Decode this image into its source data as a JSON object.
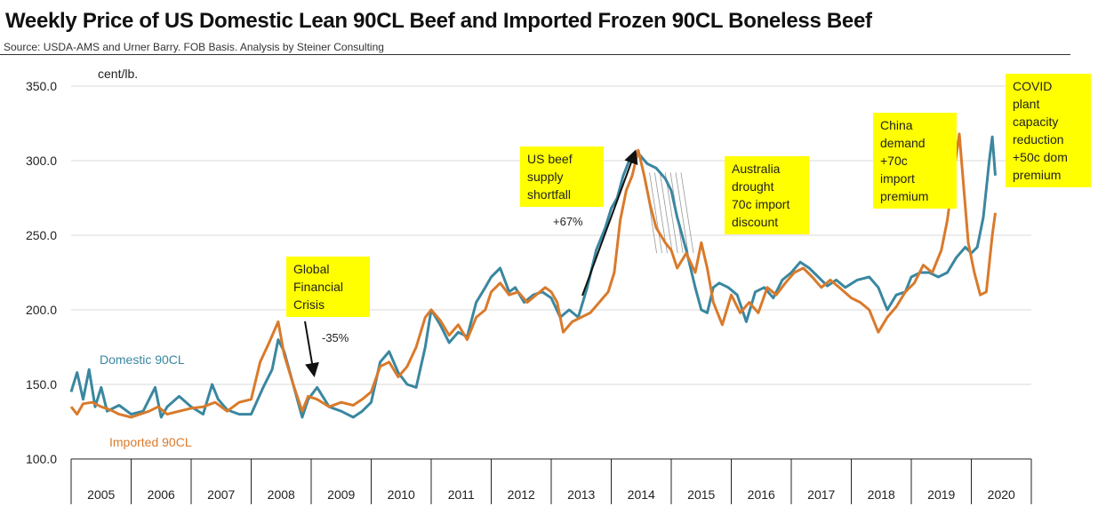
{
  "title": "Weekly Price of US Domestic Lean 90CL Beef and Imported Frozen 90CL Boneless Beef",
  "source": "Source: USDA-AMS and Urner Barry. FOB Basis. Analysis by Steiner Consulting",
  "colors": {
    "domestic": "#3a87a0",
    "imported": "#d97a2b",
    "annotation_bg": "#ffff00",
    "grid": "#d9d9d9"
  },
  "annotations": {
    "gfc": "Global\nFinancial\nCrisis",
    "gfc_change": "-35%",
    "us_shortfall": "US beef\nsupply\nshortfall",
    "us_change": "+67%",
    "australia": "Australia\ndrought\n70c import\ndiscount",
    "china": "China\ndemand\n+70c\nimport\npremium",
    "covid": "COVID\nplant\ncapacity\nreduction\n+50c dom\npremium"
  },
  "chart_data": {
    "type": "line",
    "title": "Weekly Price of US Domestic Lean 90CL Beef and Imported Frozen 90CL Boneless Beef",
    "ylabel": "cent/lb.",
    "ylim": [
      100,
      350
    ],
    "yticks": [
      "100.0",
      "150.0",
      "200.0",
      "250.0",
      "300.0",
      "350.0"
    ],
    "xlim": [
      2005,
      2021
    ],
    "xticks": [
      "2005",
      "2006",
      "2007",
      "2008",
      "2009",
      "2010",
      "2011",
      "2012",
      "2013",
      "2014",
      "2015",
      "2016",
      "2017",
      "2018",
      "2019",
      "2020"
    ],
    "grid": "horizontal",
    "series": [
      {
        "name": "Domestic 90CL",
        "color": "#3a87a0",
        "x": [
          2005.0,
          2005.1,
          2005.2,
          2005.3,
          2005.4,
          2005.5,
          2005.6,
          2005.8,
          2006.0,
          2006.2,
          2006.4,
          2006.5,
          2006.6,
          2006.8,
          2007.0,
          2007.2,
          2007.35,
          2007.45,
          2007.6,
          2007.8,
          2008.0,
          2008.2,
          2008.35,
          2008.45,
          2008.55,
          2008.7,
          2008.85,
          2008.95,
          2009.1,
          2009.3,
          2009.5,
          2009.7,
          2009.85,
          2010.0,
          2010.15,
          2010.3,
          2010.45,
          2010.6,
          2010.75,
          2010.9,
          2011.0,
          2011.15,
          2011.3,
          2011.45,
          2011.6,
          2011.75,
          2011.9,
          2012.0,
          2012.15,
          2012.3,
          2012.4,
          2012.55,
          2012.7,
          2012.85,
          2013.0,
          2013.15,
          2013.3,
          2013.45,
          2013.6,
          2013.75,
          2013.9,
          2014.0,
          2014.1,
          2014.2,
          2014.3,
          2014.45,
          2014.6,
          2014.75,
          2014.9,
          2015.0,
          2015.1,
          2015.25,
          2015.4,
          2015.5,
          2015.6,
          2015.7,
          2015.8,
          2015.95,
          2016.1,
          2016.25,
          2016.4,
          2016.55,
          2016.7,
          2016.85,
          2017.0,
          2017.15,
          2017.3,
          2017.45,
          2017.6,
          2017.75,
          2017.9,
          2018.1,
          2018.3,
          2018.45,
          2018.6,
          2018.75,
          2018.9,
          2019.0,
          2019.15,
          2019.3,
          2019.45,
          2019.6,
          2019.75,
          2019.9,
          2020.0,
          2020.1,
          2020.2,
          2020.3,
          2020.35,
          2020.4
        ],
        "values": [
          145,
          158,
          140,
          160,
          135,
          148,
          132,
          136,
          130,
          132,
          148,
          128,
          135,
          142,
          135,
          130,
          150,
          140,
          133,
          130,
          130,
          148,
          160,
          180,
          172,
          150,
          128,
          140,
          148,
          135,
          132,
          128,
          132,
          138,
          165,
          172,
          158,
          150,
          148,
          175,
          200,
          190,
          178,
          185,
          182,
          205,
          215,
          222,
          228,
          212,
          215,
          205,
          210,
          212,
          208,
          195,
          200,
          195,
          215,
          240,
          255,
          268,
          275,
          290,
          300,
          305,
          298,
          295,
          288,
          280,
          262,
          240,
          215,
          200,
          198,
          215,
          218,
          215,
          210,
          192,
          212,
          215,
          208,
          220,
          225,
          232,
          228,
          222,
          216,
          220,
          215,
          220,
          222,
          215,
          200,
          210,
          212,
          222,
          225,
          225,
          222,
          225,
          235,
          242,
          238,
          242,
          262,
          300,
          316,
          290
        ]
      },
      {
        "name": "Imported 90CL",
        "color": "#d97a2b",
        "x": [
          2005.0,
          2005.1,
          2005.2,
          2005.35,
          2005.5,
          2005.65,
          2005.8,
          2006.0,
          2006.15,
          2006.3,
          2006.45,
          2006.6,
          2006.8,
          2007.0,
          2007.2,
          2007.4,
          2007.6,
          2007.8,
          2008.0,
          2008.15,
          2008.3,
          2008.45,
          2008.55,
          2008.7,
          2008.85,
          2008.95,
          2009.1,
          2009.3,
          2009.5,
          2009.7,
          2009.85,
          2010.0,
          2010.15,
          2010.3,
          2010.45,
          2010.6,
          2010.75,
          2010.9,
          2011.0,
          2011.15,
          2011.3,
          2011.45,
          2011.6,
          2011.75,
          2011.9,
          2012.0,
          2012.15,
          2012.3,
          2012.45,
          2012.6,
          2012.75,
          2012.9,
          2013.0,
          2013.1,
          2013.2,
          2013.35,
          2013.5,
          2013.65,
          2013.8,
          2013.95,
          2014.05,
          2014.15,
          2014.25,
          2014.35,
          2014.45,
          2014.55,
          2014.65,
          2014.75,
          2014.9,
          2015.0,
          2015.1,
          2015.25,
          2015.4,
          2015.5,
          2015.6,
          2015.7,
          2015.85,
          2016.0,
          2016.15,
          2016.3,
          2016.45,
          2016.6,
          2016.75,
          2016.9,
          2017.05,
          2017.2,
          2017.35,
          2017.5,
          2017.65,
          2017.8,
          2018.0,
          2018.15,
          2018.3,
          2018.45,
          2018.6,
          2018.75,
          2018.9,
          2019.05,
          2019.2,
          2019.35,
          2019.5,
          2019.6,
          2019.7,
          2019.8,
          2019.95,
          2020.05,
          2020.15,
          2020.25,
          2020.35,
          2020.4
        ],
        "values": [
          135,
          130,
          137,
          138,
          135,
          133,
          130,
          128,
          130,
          132,
          135,
          130,
          132,
          134,
          135,
          138,
          132,
          138,
          140,
          165,
          178,
          192,
          170,
          150,
          132,
          142,
          140,
          135,
          138,
          136,
          140,
          145,
          162,
          165,
          155,
          162,
          175,
          195,
          200,
          193,
          183,
          190,
          180,
          195,
          200,
          212,
          218,
          210,
          212,
          205,
          210,
          215,
          212,
          205,
          185,
          192,
          195,
          198,
          205,
          212,
          225,
          260,
          280,
          290,
          307,
          290,
          270,
          255,
          245,
          240,
          228,
          238,
          225,
          245,
          228,
          205,
          190,
          210,
          198,
          205,
          198,
          215,
          210,
          218,
          225,
          228,
          222,
          215,
          220,
          215,
          208,
          205,
          200,
          185,
          195,
          202,
          212,
          218,
          230,
          225,
          240,
          260,
          290,
          318,
          245,
          225,
          210,
          212,
          250,
          265
        ]
      }
    ]
  }
}
